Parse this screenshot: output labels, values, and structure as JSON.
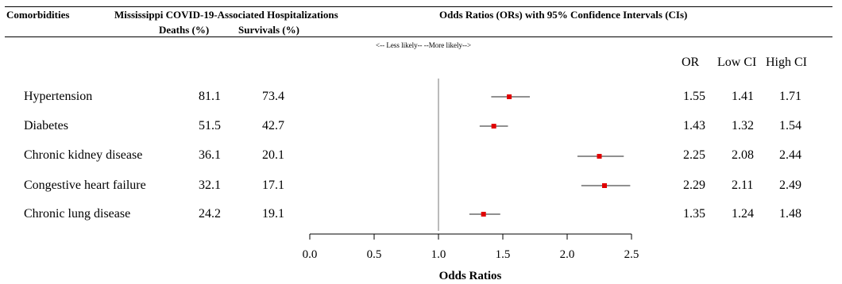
{
  "header": {
    "comorbidities": "Comorbidities",
    "hosp_title": "Mississippi COVID-19-Associated Hospitalizations",
    "deaths": "Deaths (%)",
    "survivals": "Survivals (%)",
    "or_title": "Odds Ratios (ORs) with 95% Confidence Intervals (CIs)"
  },
  "direction_label": "<-- Less likely--  --More likely-->",
  "columns": {
    "or": "OR",
    "low": "Low CI",
    "high": "High CI"
  },
  "rows": [
    {
      "name": "Hypertension",
      "deaths": "81.1",
      "survivals": "73.4",
      "or": "1.55",
      "low": "1.41",
      "high": "1.71"
    },
    {
      "name": "Diabetes",
      "deaths": "51.5",
      "survivals": "42.7",
      "or": "1.43",
      "low": "1.32",
      "high": "1.54"
    },
    {
      "name": "Chronic kidney disease",
      "deaths": "36.1",
      "survivals": "20.1",
      "or": "2.25",
      "low": "2.08",
      "high": "2.44"
    },
    {
      "name": "Congestive heart failure",
      "deaths": "32.1",
      "survivals": "17.1",
      "or": "2.29",
      "low": "2.11",
      "high": "2.49"
    },
    {
      "name": "Chronic lung disease",
      "deaths": "24.2",
      "survivals": "19.1",
      "or": "1.35",
      "low": "1.24",
      "high": "1.48"
    }
  ],
  "chart_data": {
    "type": "scatter",
    "categories": [
      "Hypertension",
      "Diabetes",
      "Chronic kidney disease",
      "Congestive heart failure",
      "Chronic lung disease"
    ],
    "or": [
      1.55,
      1.43,
      2.25,
      2.29,
      1.35
    ],
    "low_ci": [
      1.41,
      1.32,
      2.08,
      2.11,
      1.24
    ],
    "high_ci": [
      1.71,
      1.54,
      2.44,
      2.49,
      1.48
    ],
    "xlabel": "Odds Ratios",
    "xlim": [
      0,
      2.5
    ],
    "xticks": [
      "0.0",
      "0.5",
      "1.0",
      "1.5",
      "2.0",
      "2.5"
    ],
    "reference_line": 1.0,
    "marker_color": "#e00000"
  }
}
